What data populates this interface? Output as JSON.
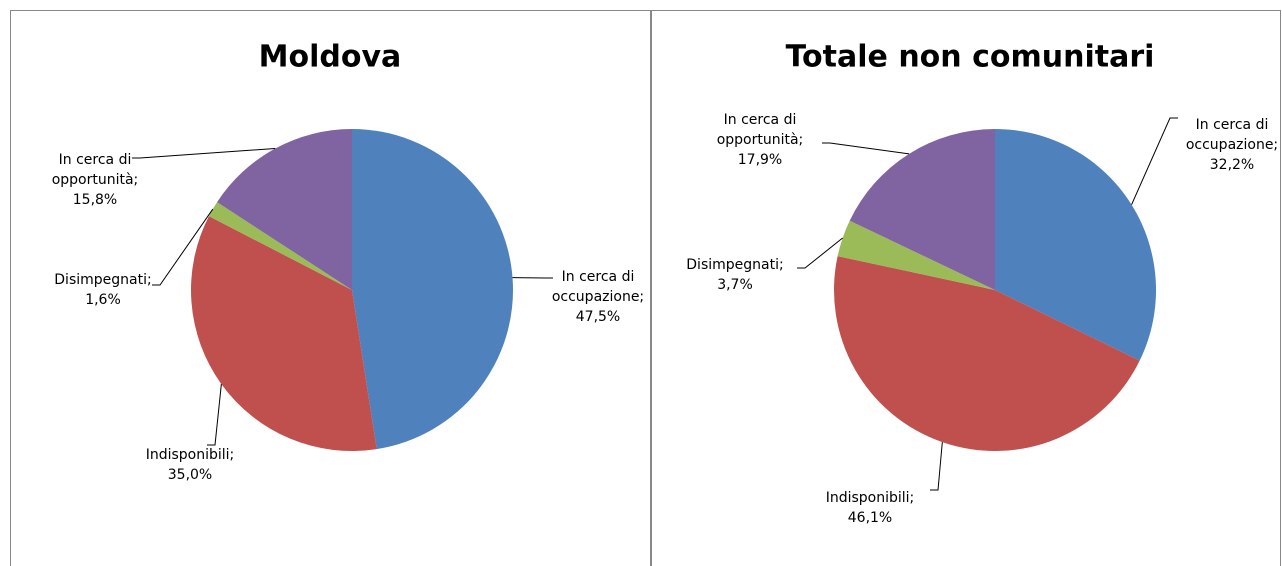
{
  "chart_data": [
    {
      "type": "pie",
      "title": "Moldova",
      "values": [
        47.5,
        35.0,
        1.6,
        15.8
      ],
      "value_labels": [
        "In cerca di occupazione; 47,5%",
        "Indisponibili; 35,0%",
        "Disimpegnati; 1,6%",
        "In cerca di opportunità; 15,8%"
      ],
      "colors": [
        "#4f81bd",
        "#c0504d",
        "#9bbb59",
        "#8064a2"
      ]
    },
    {
      "type": "pie",
      "title": "Totale non comunitari",
      "values": [
        32.2,
        46.1,
        3.7,
        17.9
      ],
      "value_labels": [
        "In cerca di occupazione; 32,2%",
        "Indisponibili; 46,1%",
        "Disimpegnati; 3,7%",
        "In cerca di opportunità; 17,9%"
      ],
      "colors": [
        "#4f81bd",
        "#c0504d",
        "#9bbb59",
        "#8064a2"
      ]
    }
  ]
}
